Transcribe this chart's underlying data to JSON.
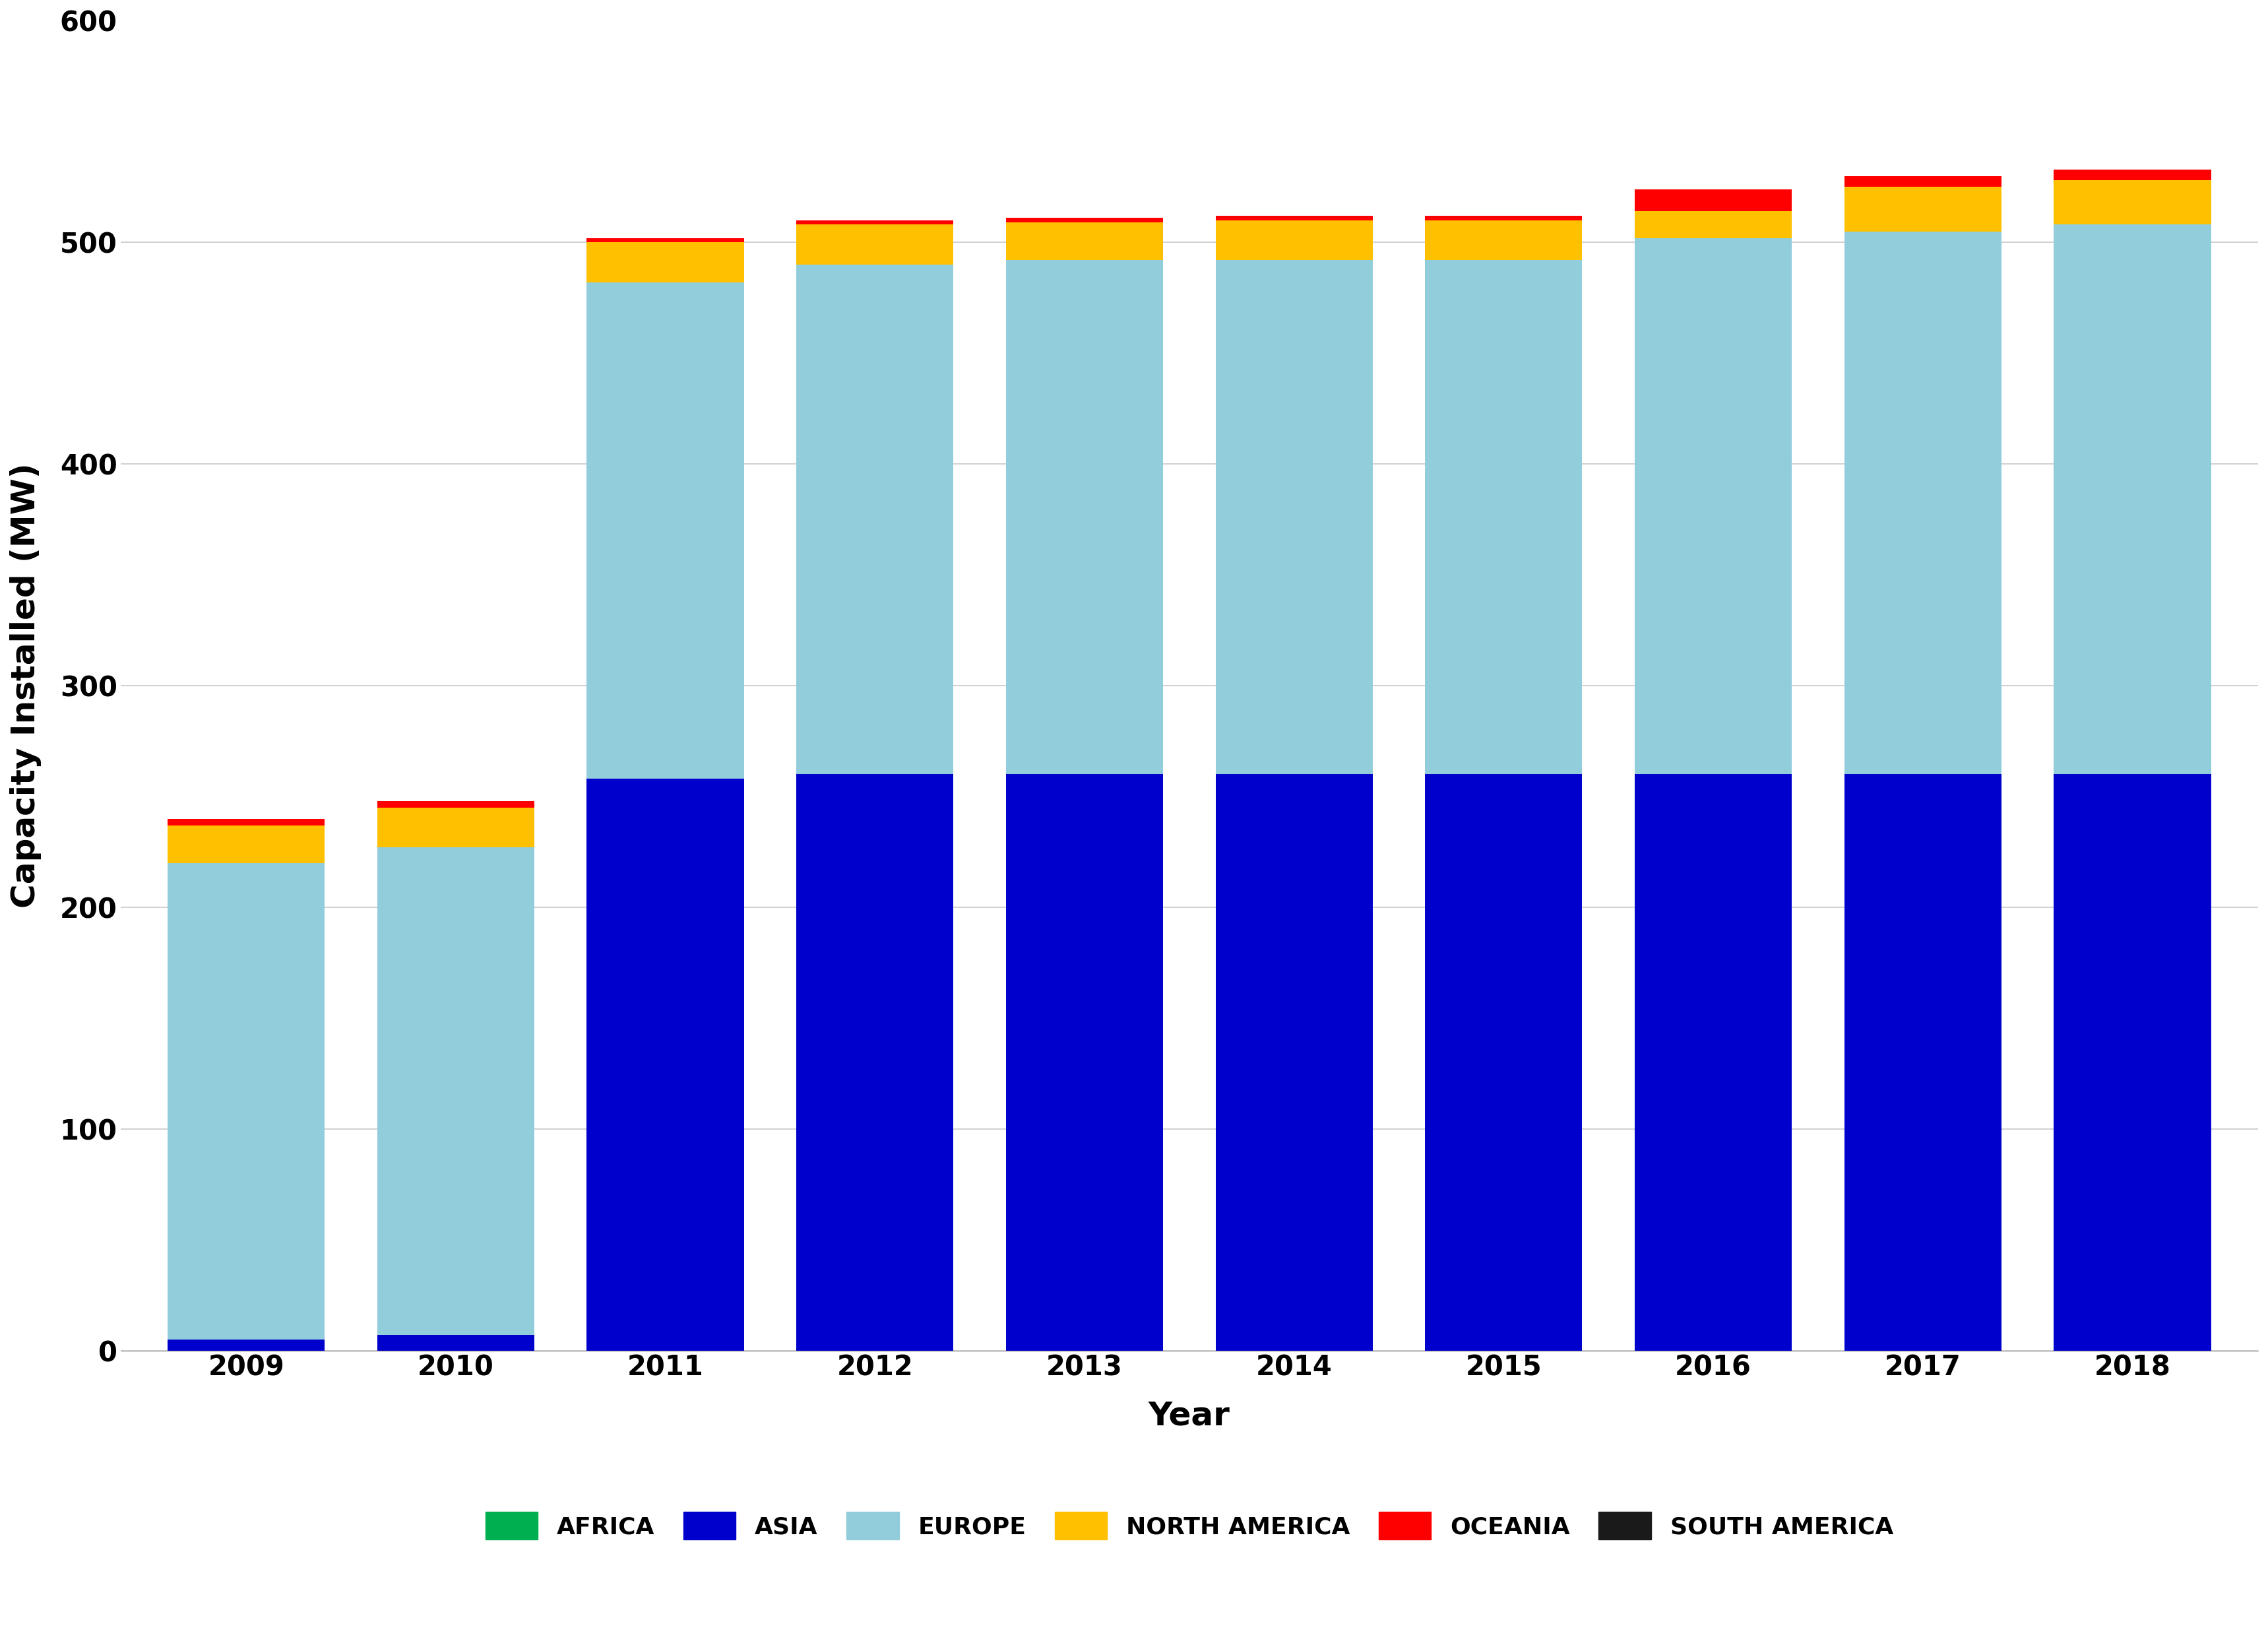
{
  "years": [
    2009,
    2010,
    2011,
    2012,
    2013,
    2014,
    2015,
    2016,
    2017,
    2018
  ],
  "africa": [
    0,
    0,
    0,
    0,
    0,
    0,
    0,
    0,
    0,
    0
  ],
  "asia": [
    5,
    7,
    258,
    260,
    260,
    260,
    260,
    260,
    260,
    260
  ],
  "europe": [
    215,
    220,
    224,
    230,
    232,
    232,
    232,
    242,
    245,
    248
  ],
  "north_america": [
    17,
    18,
    18,
    18,
    17,
    18,
    18,
    12,
    20,
    20
  ],
  "oceania": [
    3,
    3,
    2,
    2,
    2,
    2,
    2,
    10,
    5,
    5
  ],
  "south_america": [
    0,
    0,
    0,
    0,
    0,
    0,
    0,
    0,
    0,
    0
  ],
  "colors": {
    "africa": "#00b050",
    "asia": "#0000cc",
    "europe": "#92cddc",
    "north_america": "#ffc000",
    "oceania": "#ff0000",
    "south_america": "#1a1a1a"
  },
  "legend_labels": [
    "AFRICA",
    "ASIA",
    "EUROPE",
    "NORTH AMERICA",
    "OCEANIA",
    "SOUTH AMERICA"
  ],
  "ylabel": "Capacity Installed (MW)",
  "xlabel": "Year",
  "ylim": [
    0,
    600
  ],
  "yticks": [
    0,
    100,
    200,
    300,
    400,
    500,
    600
  ],
  "background_color": "#ffffff",
  "grid_color": "#c8c8c8",
  "bar_width": 0.75,
  "tick_fontsize": 30,
  "label_fontsize": 36,
  "legend_fontsize": 26
}
